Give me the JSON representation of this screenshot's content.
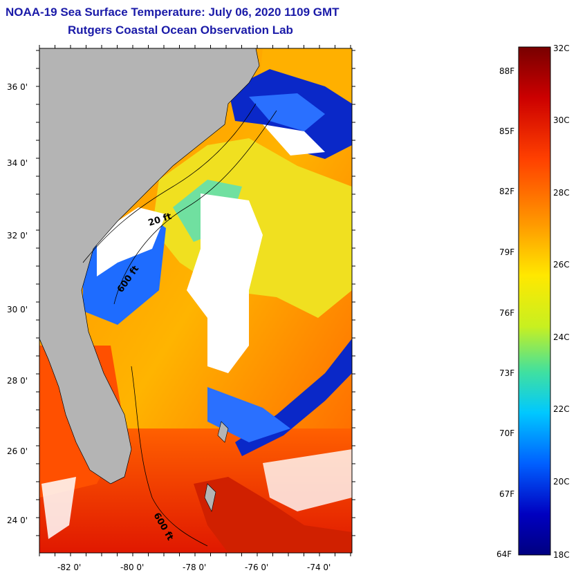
{
  "title_line1": "NOAA-19 Sea Surface Temperature:  July 06, 2020 1109 GMT",
  "title_line2": "Rutgers Coastal Ocean Observation Lab",
  "map": {
    "lon_range": [
      -83,
      -73
    ],
    "lat_range": [
      23,
      37
    ],
    "lon_ticks": [
      "-82 0'",
      "-80 0'",
      "-78 0'",
      "-76 0'",
      "-74 0'"
    ],
    "lat_ticks": [
      "36 0'",
      "34 0'",
      "32 0'",
      "30 0'",
      "28 0'",
      "26 0'",
      "24 0'"
    ],
    "contour_labels": [
      "20 ft",
      "600 ft",
      "600 ft"
    ],
    "land_color": "#b4b4b4",
    "cloud_color": "#ffffff"
  },
  "colorbar": {
    "celsius_labels": [
      "32C",
      "30C",
      "28C",
      "26C",
      "24C",
      "22C",
      "20C",
      "18C"
    ],
    "fahrenheit_labels": [
      "88F",
      "85F",
      "82F",
      "79F",
      "76F",
      "73F",
      "70F",
      "67F",
      "64F"
    ],
    "colors_top_to_bottom": [
      "#780000",
      "#cc0000",
      "#ff4000",
      "#ff9a00",
      "#ffe800",
      "#c8f020",
      "#40e0a0",
      "#00c8ff",
      "#0060ff",
      "#0000c0",
      "#000080"
    ]
  }
}
